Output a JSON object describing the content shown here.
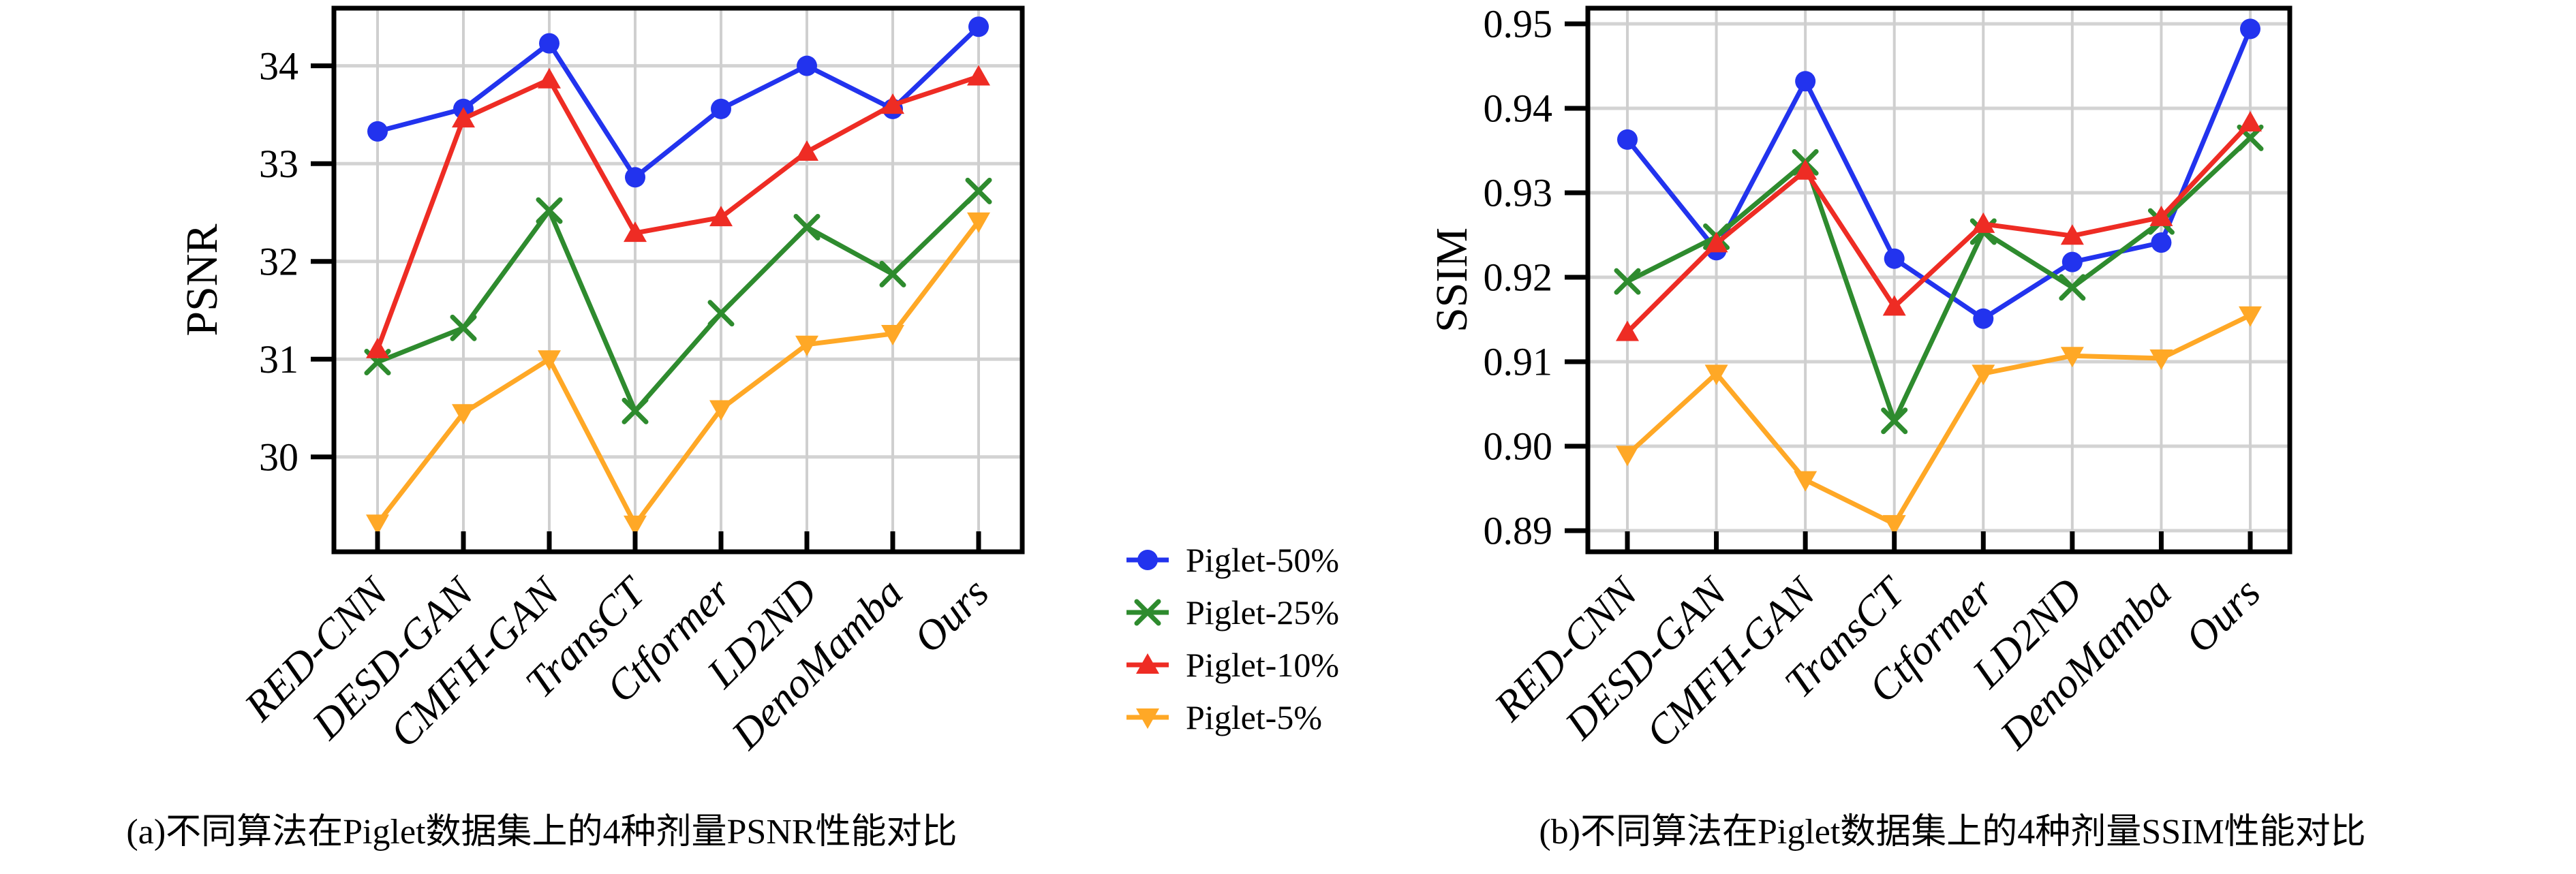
{
  "page": {
    "background": "#ffffff"
  },
  "captions": {
    "left": "(a)不同算法在Piglet数据集上的4种剂量PSNR性能对比",
    "right": "(b)不同算法在Piglet数据集上的4种剂量SSIM性能对比"
  },
  "legend": {
    "position": "center-between-charts",
    "items": [
      "Piglet-50%",
      "Piglet-25%",
      "Piglet-10%",
      "Piglet-5%"
    ]
  },
  "colors": {
    "piglet_50": "#2233ee",
    "piglet_25": "#2e8b2e",
    "piglet_10": "#ee2c24",
    "piglet_5": "#ffa826",
    "gridline": "#d0d0d0",
    "frame": "#000000"
  },
  "chart_data": [
    {
      "type": "line",
      "title": "",
      "xlabel": "",
      "ylabel": "PSNR",
      "categories": [
        "RED-CNN",
        "DESD-GAN",
        "CMFH-GAN",
        "TransCT",
        "Ctformer",
        "LD2ND",
        "DenoMamba",
        "Ours"
      ],
      "series": [
        {
          "name": "Piglet-50%",
          "color": "#2233ee",
          "marker": "circle",
          "values": [
            33.33,
            33.56,
            34.23,
            32.86,
            33.56,
            34.0,
            33.56,
            34.4
          ]
        },
        {
          "name": "Piglet-25%",
          "color": "#2e8b2e",
          "marker": "x",
          "values": [
            30.97,
            31.32,
            32.52,
            30.47,
            31.47,
            32.35,
            31.87,
            32.72
          ]
        },
        {
          "name": "Piglet-10%",
          "color": "#ee2c24",
          "marker": "triangle-up",
          "values": [
            31.1,
            33.46,
            33.86,
            32.29,
            32.45,
            33.12,
            33.6,
            33.89
          ]
        },
        {
          "name": "Piglet-5%",
          "color": "#ffa826",
          "marker": "triangle-down",
          "values": [
            29.32,
            30.45,
            31.0,
            29.31,
            30.49,
            31.15,
            31.26,
            32.41
          ]
        }
      ],
      "ylim": [
        29.03,
        34.59
      ],
      "yticks": [
        30,
        31,
        32,
        33,
        34
      ],
      "ytick_labels": [
        "30",
        "31",
        "32",
        "33",
        "34"
      ],
      "grid": true,
      "x_tick_rotation": -45,
      "legend_position": "outside-right"
    },
    {
      "type": "line",
      "title": "",
      "xlabel": "",
      "ylabel": "SSIM",
      "categories": [
        "RED-CNN",
        "DESD-GAN",
        "CMFH-GAN",
        "TransCT",
        "Ctformer",
        "LD2ND",
        "DenoMamba",
        "Ours"
      ],
      "series": [
        {
          "name": "Piglet-50%",
          "color": "#2233ee",
          "marker": "circle",
          "values": [
            0.9363,
            0.9232,
            0.9432,
            0.9222,
            0.9151,
            0.9218,
            0.9241,
            0.9494
          ]
        },
        {
          "name": "Piglet-25%",
          "color": "#2e8b2e",
          "marker": "x",
          "values": [
            0.9195,
            0.9248,
            0.9336,
            0.903,
            0.9254,
            0.9188,
            0.9266,
            0.9365
          ]
        },
        {
          "name": "Piglet-10%",
          "color": "#ee2c24",
          "marker": "triangle-up",
          "values": [
            0.9135,
            0.924,
            0.9326,
            0.9165,
            0.9263,
            0.9249,
            0.9271,
            0.9383
          ]
        },
        {
          "name": "Piglet-5%",
          "color": "#ffa826",
          "marker": "triangle-down",
          "values": [
            0.899,
            0.9086,
            0.896,
            0.8908,
            0.9086,
            0.9107,
            0.9104,
            0.9155
          ]
        }
      ],
      "ylim": [
        0.8875,
        0.95185
      ],
      "yticks": [
        0.89,
        0.9,
        0.91,
        0.92,
        0.93,
        0.94,
        0.95
      ],
      "ytick_labels": [
        "0.89",
        "0.90",
        "0.91",
        "0.92",
        "0.93",
        "0.94",
        "0.95"
      ],
      "grid": true,
      "x_tick_rotation": -45,
      "legend_position": "outside-left"
    }
  ]
}
